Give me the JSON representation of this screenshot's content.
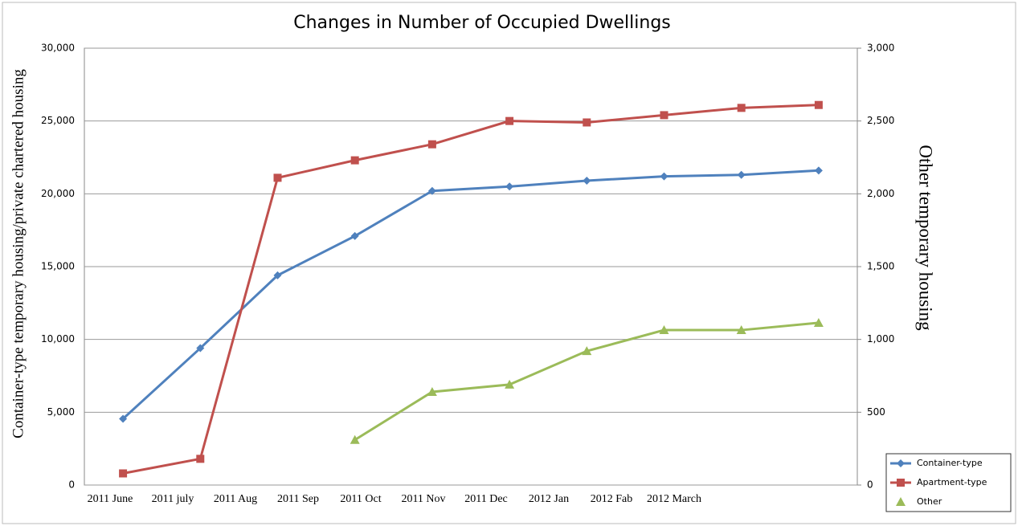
{
  "chart_data": {
    "type": "line",
    "title": "Changes in Number of Occupied Dwellings",
    "y_label": "Container-type temporary housing/private chartered housing",
    "y2_label": "Other temporary housing",
    "categories": [
      "2011 June",
      "2011 july",
      "2011 Aug",
      "2011 Sep",
      "2011 Oct",
      "2011 Nov",
      "2011 Dec",
      "2012 Jan",
      "2012 Fab",
      "2012 March",
      null
    ],
    "series": [
      {
        "name": "Container-type",
        "color": "#4f81bd",
        "marker": "diamond",
        "values": [
          4550,
          9400,
          14400,
          17100,
          20200,
          20500,
          20900,
          21200,
          21300,
          21600,
          null
        ]
      },
      {
        "name": "Apartment-type",
        "color": "#c0504d",
        "marker": "square",
        "values": [
          800,
          1800,
          21100,
          22300,
          23400,
          25000,
          24900,
          25400,
          25900,
          26100,
          null
        ]
      },
      {
        "name": "Other",
        "color": "#9bbb59",
        "marker": "triangle",
        "axis": "y2",
        "values": [
          null,
          null,
          null,
          310,
          640,
          690,
          920,
          1064,
          1064,
          1114,
          null
        ]
      }
    ],
    "ylim": [
      0,
      30000
    ],
    "yticks": [
      0,
      {
        "value": 5000,
        "label": "5,000"
      },
      {
        "value": 10000,
        "label": "10,000"
      },
      {
        "value": 15000,
        "label": "15,000"
      },
      {
        "value": 20000,
        "label": "20,000"
      },
      {
        "value": 25000,
        "label": "25,000"
      },
      {
        "value": 30000,
        "label": "30,000"
      }
    ],
    "y2lim": [
      0,
      3000
    ],
    "y2ticks": [
      0,
      500,
      {
        "value": 1000,
        "label": "1,000"
      },
      {
        "value": 1500,
        "label": "1,500"
      },
      {
        "value": 2000,
        "label": "2,000"
      },
      {
        "value": 2500,
        "label": "2,500"
      },
      {
        "value": 3000,
        "label": "3,000"
      }
    ],
    "grid": true,
    "legend": "bottom-right"
  }
}
